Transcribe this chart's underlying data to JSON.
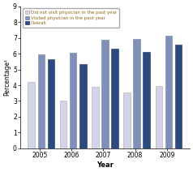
{
  "years": [
    2005,
    2006,
    2007,
    2008,
    2009
  ],
  "did_not_visit": [
    4.2,
    3.05,
    3.9,
    3.55,
    3.95
  ],
  "visited": [
    5.95,
    6.05,
    6.9,
    6.95,
    7.15
  ],
  "overall": [
    5.65,
    5.35,
    6.3,
    6.1,
    6.55
  ],
  "color_did_not_visit": "#d4d4e8",
  "color_visited": "#8090b8",
  "color_overall": "#2a4a80",
  "ylabel": "Percentage¹",
  "xlabel": "Year",
  "ylim": [
    0,
    9
  ],
  "yticks": [
    0,
    1,
    2,
    3,
    4,
    5,
    6,
    7,
    8,
    9
  ],
  "legend_labels": [
    "Did not visit physician in the past year",
    "Visited physician in the past year",
    "Overall"
  ],
  "legend_text_color": "#8B6914",
  "background_color": "#ffffff",
  "bar_width": 0.22
}
